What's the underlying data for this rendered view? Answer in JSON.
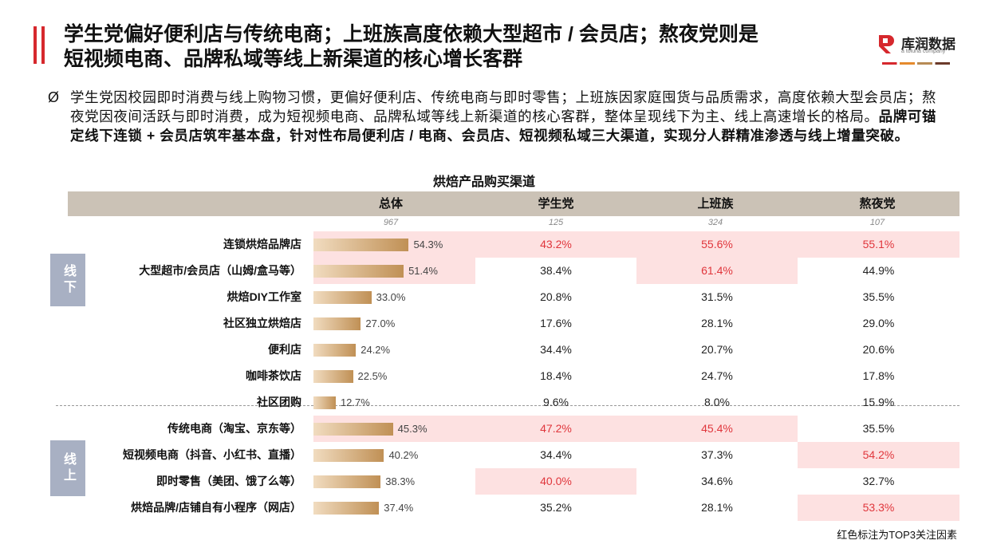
{
  "header": {
    "title_lines": [
      "学生党偏好便利店与传统电商；上班族高度依赖大型超市 / 会员店；熬夜党则是",
      "短视频电商、品牌私域等线上新渠道的核心增长客群"
    ],
    "logo": "库润数据",
    "logo_sub": "a toluna company"
  },
  "bullet": {
    "marker": "Ø",
    "text": "学生党因校园即时消费与线上购物习惯，更偏好便利店、传统电商与即时零售；上班族因家庭囤货与品质需求，高度依赖大型会员店；熬夜党因夜间活跃与即时消费，成为短视频电商、品牌私域等线上新渠道的核心客群，整体呈现线下为主、线上高速增长的格局。",
    "bold": "品牌可锚定线下连锁 + 会员店筑牢基本盘，针对性布局便利店 / 电商、会员店、短视频私域三大渠道，实现分人群精准渗透与线上增量突破。"
  },
  "table": {
    "title": "烘焙产品购买渠道",
    "columns": [
      "总体",
      "学生党",
      "上班族",
      "熬夜党"
    ],
    "sample_sizes": [
      967,
      125,
      324,
      107
    ],
    "groups": [
      {
        "label": "线下",
        "rows": [
          {
            "label": "连锁烘焙品牌店",
            "overall": {
              "value": 54.3,
              "label": "54.3%"
            },
            "segments": [
              "43.2%",
              "55.6%",
              "55.1%"
            ],
            "top3": [
              true,
              true,
              true,
              true
            ]
          },
          {
            "label": "大型超市/会员店（山姆/盒马等）",
            "overall": {
              "value": 51.4,
              "label": "51.4%"
            },
            "segments": [
              "38.4%",
              "61.4%",
              "44.9%"
            ],
            "top3": [
              true,
              false,
              true,
              false
            ]
          },
          {
            "label": "烘焙DIY工作室",
            "overall": {
              "value": 33.0,
              "label": "33.0%"
            },
            "segments": [
              "20.8%",
              "31.5%",
              "35.5%"
            ],
            "top3": [
              false,
              false,
              false,
              false
            ]
          },
          {
            "label": "社区独立烘焙店",
            "overall": {
              "value": 27.0,
              "label": "27.0%"
            },
            "segments": [
              "17.6%",
              "28.1%",
              "29.0%"
            ],
            "top3": [
              false,
              false,
              false,
              false
            ]
          },
          {
            "label": "便利店",
            "overall": {
              "value": 24.2,
              "label": "24.2%"
            },
            "segments": [
              "34.4%",
              "20.7%",
              "20.6%"
            ],
            "top3": [
              false,
              false,
              false,
              false
            ]
          },
          {
            "label": "咖啡茶饮店",
            "overall": {
              "value": 22.5,
              "label": "22.5%"
            },
            "segments": [
              "18.4%",
              "24.7%",
              "17.8%"
            ],
            "top3": [
              false,
              false,
              false,
              false
            ]
          },
          {
            "label": "社区团购",
            "overall": {
              "value": 12.7,
              "label": "12.7%"
            },
            "segments": [
              "9.6%",
              "8.0%",
              "15.9%"
            ],
            "top3": [
              false,
              false,
              false,
              false
            ]
          }
        ]
      },
      {
        "label": "线上",
        "rows": [
          {
            "label": "传统电商（淘宝、京东等）",
            "overall": {
              "value": 45.3,
              "label": "45.3%"
            },
            "segments": [
              "47.2%",
              "45.4%",
              "35.5%"
            ],
            "top3": [
              true,
              true,
              true,
              false
            ]
          },
          {
            "label": "短视频电商（抖音、小红书、直播）",
            "overall": {
              "value": 40.2,
              "label": "40.2%"
            },
            "segments": [
              "34.4%",
              "37.3%",
              "54.2%"
            ],
            "top3": [
              false,
              false,
              false,
              true
            ]
          },
          {
            "label": "即时零售（美团、饿了么等）",
            "overall": {
              "value": 38.3,
              "label": "38.3%"
            },
            "segments": [
              "40.0%",
              "34.6%",
              "32.7%"
            ],
            "top3": [
              false,
              true,
              false,
              false
            ]
          },
          {
            "label": "烘焙品牌/店铺自有小程序（网店）",
            "overall": {
              "value": 37.4,
              "label": "37.4%"
            },
            "segments": [
              "35.2%",
              "28.1%",
              "53.3%"
            ],
            "top3": [
              false,
              false,
              false,
              true
            ]
          }
        ]
      }
    ],
    "note": "红色标注为TOP3关注因素"
  }
}
